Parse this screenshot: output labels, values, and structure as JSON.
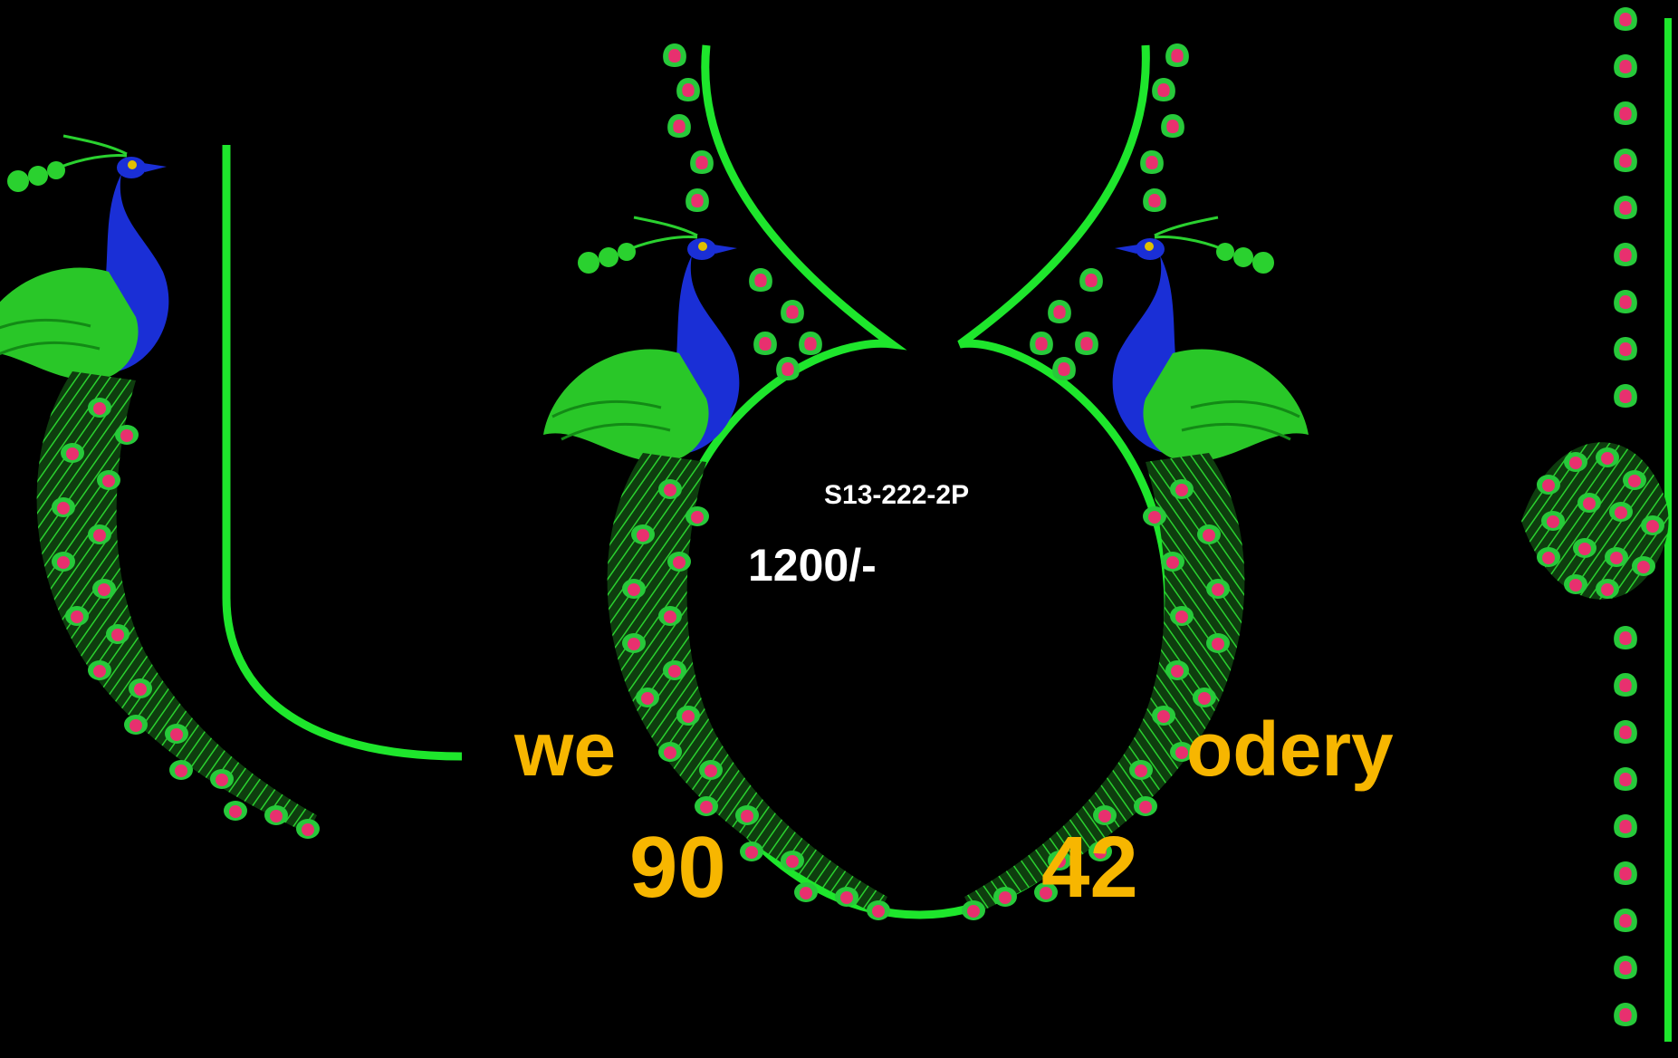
{
  "design": {
    "code": "S13-222-2P",
    "price": "1200/-"
  },
  "watermark": {
    "text_left": "we",
    "text_right": "odery",
    "number_left": "90",
    "number_right": "42"
  },
  "colors": {
    "background": "#000000",
    "outline_green": "#1ee62c",
    "leaf_green": "#29c728",
    "peacock_blue": "#1a2fd6",
    "bead_pink": "#e8306f",
    "bead_green": "#27c93a",
    "watermark_gold": "#f7b600"
  },
  "icons": [
    "peacock-icon",
    "peacock-feather-icon",
    "bead-motif-icon"
  ]
}
